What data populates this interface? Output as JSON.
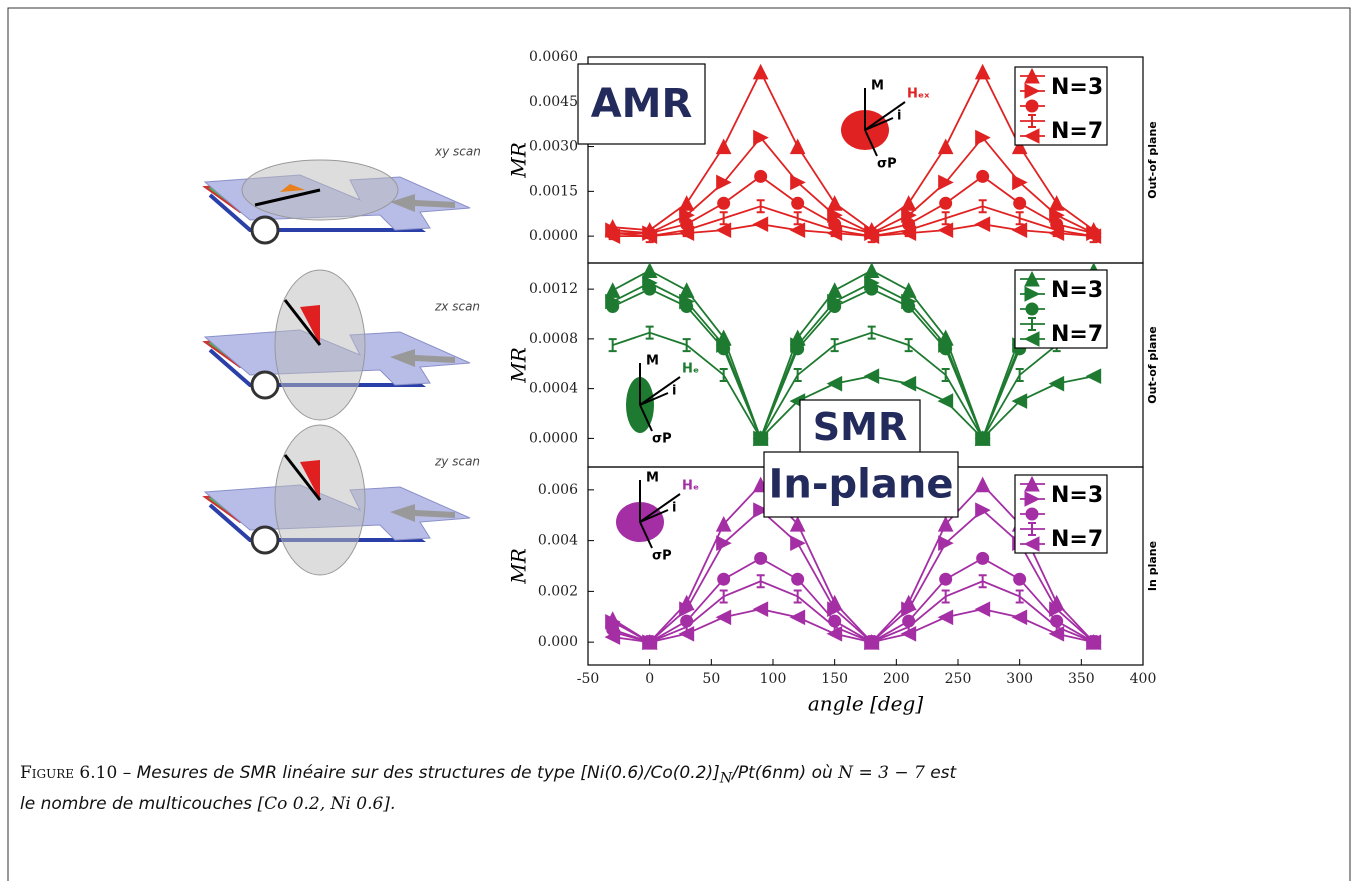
{
  "chart_data": [
    {
      "type": "line",
      "annotation": "AMR",
      "side_label": "Out-of plane",
      "ylabel": "MR",
      "legend": "upper right",
      "inset_labels": [
        "M",
        "Hₑₓ",
        "i",
        "σP"
      ],
      "x": [
        -30,
        0,
        30,
        60,
        90,
        120,
        150,
        180,
        210,
        240,
        270,
        300,
        330,
        360
      ],
      "xlim": [
        -50,
        400
      ],
      "ylim": [
        -0.0009,
        0.006
      ],
      "yticks": [
        {
          "value": 0,
          "label": "0.0000"
        },
        {
          "value": 0.0015,
          "label": "0.0015"
        },
        {
          "value": 0.003,
          "label": "0.0030"
        },
        {
          "value": 0.0045,
          "label": "0.0045"
        },
        {
          "value": 0.006,
          "label": "0.0060"
        }
      ],
      "series": [
        {
          "name": "N=3",
          "color": "#e02222",
          "marker": "triangle-up",
          "values": [
            0.0003,
            0.0002,
            0.0011,
            0.003,
            0.0055,
            0.003,
            0.0011,
            0.0002,
            0.0011,
            0.003,
            0.0055,
            0.003,
            0.0011,
            0.0002
          ]
        },
        {
          "color": "#e02222",
          "marker": "triangle-right",
          "values": [
            0.0002,
            0.0001,
            0.0007,
            0.0018,
            0.0033,
            0.0018,
            0.0007,
            0.0001,
            0.0007,
            0.0018,
            0.0033,
            0.0018,
            0.0007,
            0.0001
          ]
        },
        {
          "color": "#e02222",
          "marker": "circle",
          "values": [
            0.0001,
            0.0001,
            0.0004,
            0.0011,
            0.002,
            0.0011,
            0.0004,
            0.0001,
            0.0004,
            0.0011,
            0.002,
            0.0011,
            0.0004,
            0.0001
          ]
        },
        {
          "color": "#e02222",
          "marker": "pipe",
          "values": [
            0.0001,
            0,
            0.0002,
            0.0006,
            0.001,
            0.0006,
            0.0002,
            0,
            0.0002,
            0.0006,
            0.001,
            0.0006,
            0.0002,
            0
          ]
        },
        {
          "name": "N=7",
          "color": "#e02222",
          "marker": "triangle-left",
          "values": [
            0,
            0,
            0.0001,
            0.0002,
            0.0004,
            0.0002,
            0.0001,
            0,
            0.0001,
            0.0002,
            0.0004,
            0.0002,
            0.0001,
            0
          ]
        }
      ]
    },
    {
      "type": "line",
      "annotation": "SMR",
      "side_label": "Out-of plane",
      "ylabel": "MR",
      "legend": "upper right",
      "inset_labels": [
        "M",
        "Hₑ",
        "i",
        "σP"
      ],
      "x": [
        -30,
        0,
        30,
        60,
        90,
        120,
        150,
        180,
        210,
        240,
        270,
        300,
        330,
        360
      ],
      "xlim": [
        -50,
        400
      ],
      "ylim": [
        -0.00023,
        0.00141
      ],
      "yticks": [
        {
          "value": 0,
          "label": "0.0000"
        },
        {
          "value": 0.0004,
          "label": "0.0004"
        },
        {
          "value": 0.0008,
          "label": "0.0008"
        },
        {
          "value": 0.0012,
          "label": "0.0012"
        }
      ],
      "series": [
        {
          "name": "N=3",
          "color": "#1e7a30",
          "marker": "triangle-up",
          "values": [
            0.00119,
            0.00135,
            0.00119,
            0.00081,
            0,
            0.00081,
            0.00119,
            0.00135,
            0.00119,
            0.00081,
            0,
            0.00081,
            0.00119,
            0.00135
          ]
        },
        {
          "color": "#1e7a30",
          "marker": "triangle-right",
          "values": [
            0.0011,
            0.00125,
            0.0011,
            0.00075,
            0,
            0.00075,
            0.0011,
            0.00125,
            0.0011,
            0.00075,
            0,
            0.00075,
            0.0011,
            0.00125
          ]
        },
        {
          "color": "#1e7a30",
          "marker": "circle",
          "values": [
            0.00106,
            0.0012,
            0.00106,
            0.00072,
            0,
            0.00072,
            0.00106,
            0.0012,
            0.00106,
            0.00072,
            0,
            0.00072,
            0.00106,
            0.0012
          ]
        },
        {
          "color": "#1e7a30",
          "marker": "pipe",
          "values": [
            0.00075,
            0.00085,
            0.00075,
            0.00051,
            0,
            0.00051,
            0.00075,
            0.00085,
            0.00075,
            0.00051,
            0,
            0.00051,
            0.00075,
            0.00085
          ]
        },
        {
          "name": "N=7",
          "color": "#1e7a30",
          "marker": "triangle-left",
          "values": [
            null,
            null,
            null,
            null,
            0,
            0.0003,
            0.00044,
            0.0005,
            0.00044,
            0.0003,
            0,
            0.0003,
            0.00044,
            0.0005
          ]
        }
      ]
    },
    {
      "type": "line",
      "annotation": "In-plane",
      "side_label": "In plane",
      "ylabel": "MR",
      "xlabel": "angle [deg]",
      "legend": "upper right",
      "inset_labels": [
        "M",
        "Hₑ",
        "i",
        "σP"
      ],
      "x": [
        -30,
        0,
        30,
        60,
        90,
        120,
        150,
        180,
        210,
        240,
        270,
        300,
        330,
        360
      ],
      "xlim": [
        -50,
        400
      ],
      "xticks": [
        -50,
        0,
        50,
        100,
        150,
        200,
        250,
        300,
        350,
        400
      ],
      "ylim": [
        -0.0009,
        0.0069
      ],
      "yticks": [
        {
          "value": 0,
          "label": "0.000"
        },
        {
          "value": 0.002,
          "label": "0.002"
        },
        {
          "value": 0.004,
          "label": "0.004"
        },
        {
          "value": 0.006,
          "label": "0.006"
        }
      ],
      "series": [
        {
          "name": "N=3",
          "color": "#a42ea4",
          "marker": "triangle-up",
          "values": [
            0.0009,
            0,
            0.00155,
            0.00465,
            0.0062,
            0.00465,
            0.00155,
            0,
            0.00155,
            0.00465,
            0.0062,
            0.00465,
            0.00155,
            0
          ]
        },
        {
          "color": "#a42ea4",
          "marker": "triangle-right",
          "values": [
            0.0008,
            0,
            0.0013,
            0.0039,
            0.0052,
            0.0039,
            0.0013,
            0,
            0.0013,
            0.0039,
            0.0052,
            0.0039,
            0.0013,
            0
          ]
        },
        {
          "color": "#a42ea4",
          "marker": "circle",
          "values": [
            0.0005,
            0,
            0.00083,
            0.00248,
            0.0033,
            0.00248,
            0.00083,
            0,
            0.00083,
            0.00248,
            0.0033,
            0.00248,
            0.00083,
            0
          ]
        },
        {
          "color": "#a42ea4",
          "marker": "pipe",
          "values": [
            0.0004,
            0,
            0.0006,
            0.0018,
            0.0024,
            0.0018,
            0.0006,
            0,
            0.0006,
            0.0018,
            0.0024,
            0.0018,
            0.0006,
            0
          ]
        },
        {
          "name": "N=7",
          "color": "#a42ea4",
          "marker": "triangle-left",
          "values": [
            0.0002,
            0,
            0.00033,
            0.00098,
            0.0013,
            0.00098,
            0.00033,
            0,
            0.00033,
            0.00098,
            0.0013,
            0.00098,
            0.00033,
            0
          ]
        }
      ]
    }
  ],
  "diagrams": [
    {
      "label": "xy scan"
    },
    {
      "label": "zx scan"
    },
    {
      "label": "zy scan"
    }
  ],
  "caption": {
    "label": "Figure 6.10 –",
    "parts": [
      "Mesures de SMR linéaire sur des structures de type [Ni(0.6)/Co(0.2)]",
      "N",
      "/Pt(6nm) où",
      "N = 3 − 7",
      "est",
      "le nombre de multicouches",
      "[Co 0.2, Ni 0.6]."
    ]
  }
}
